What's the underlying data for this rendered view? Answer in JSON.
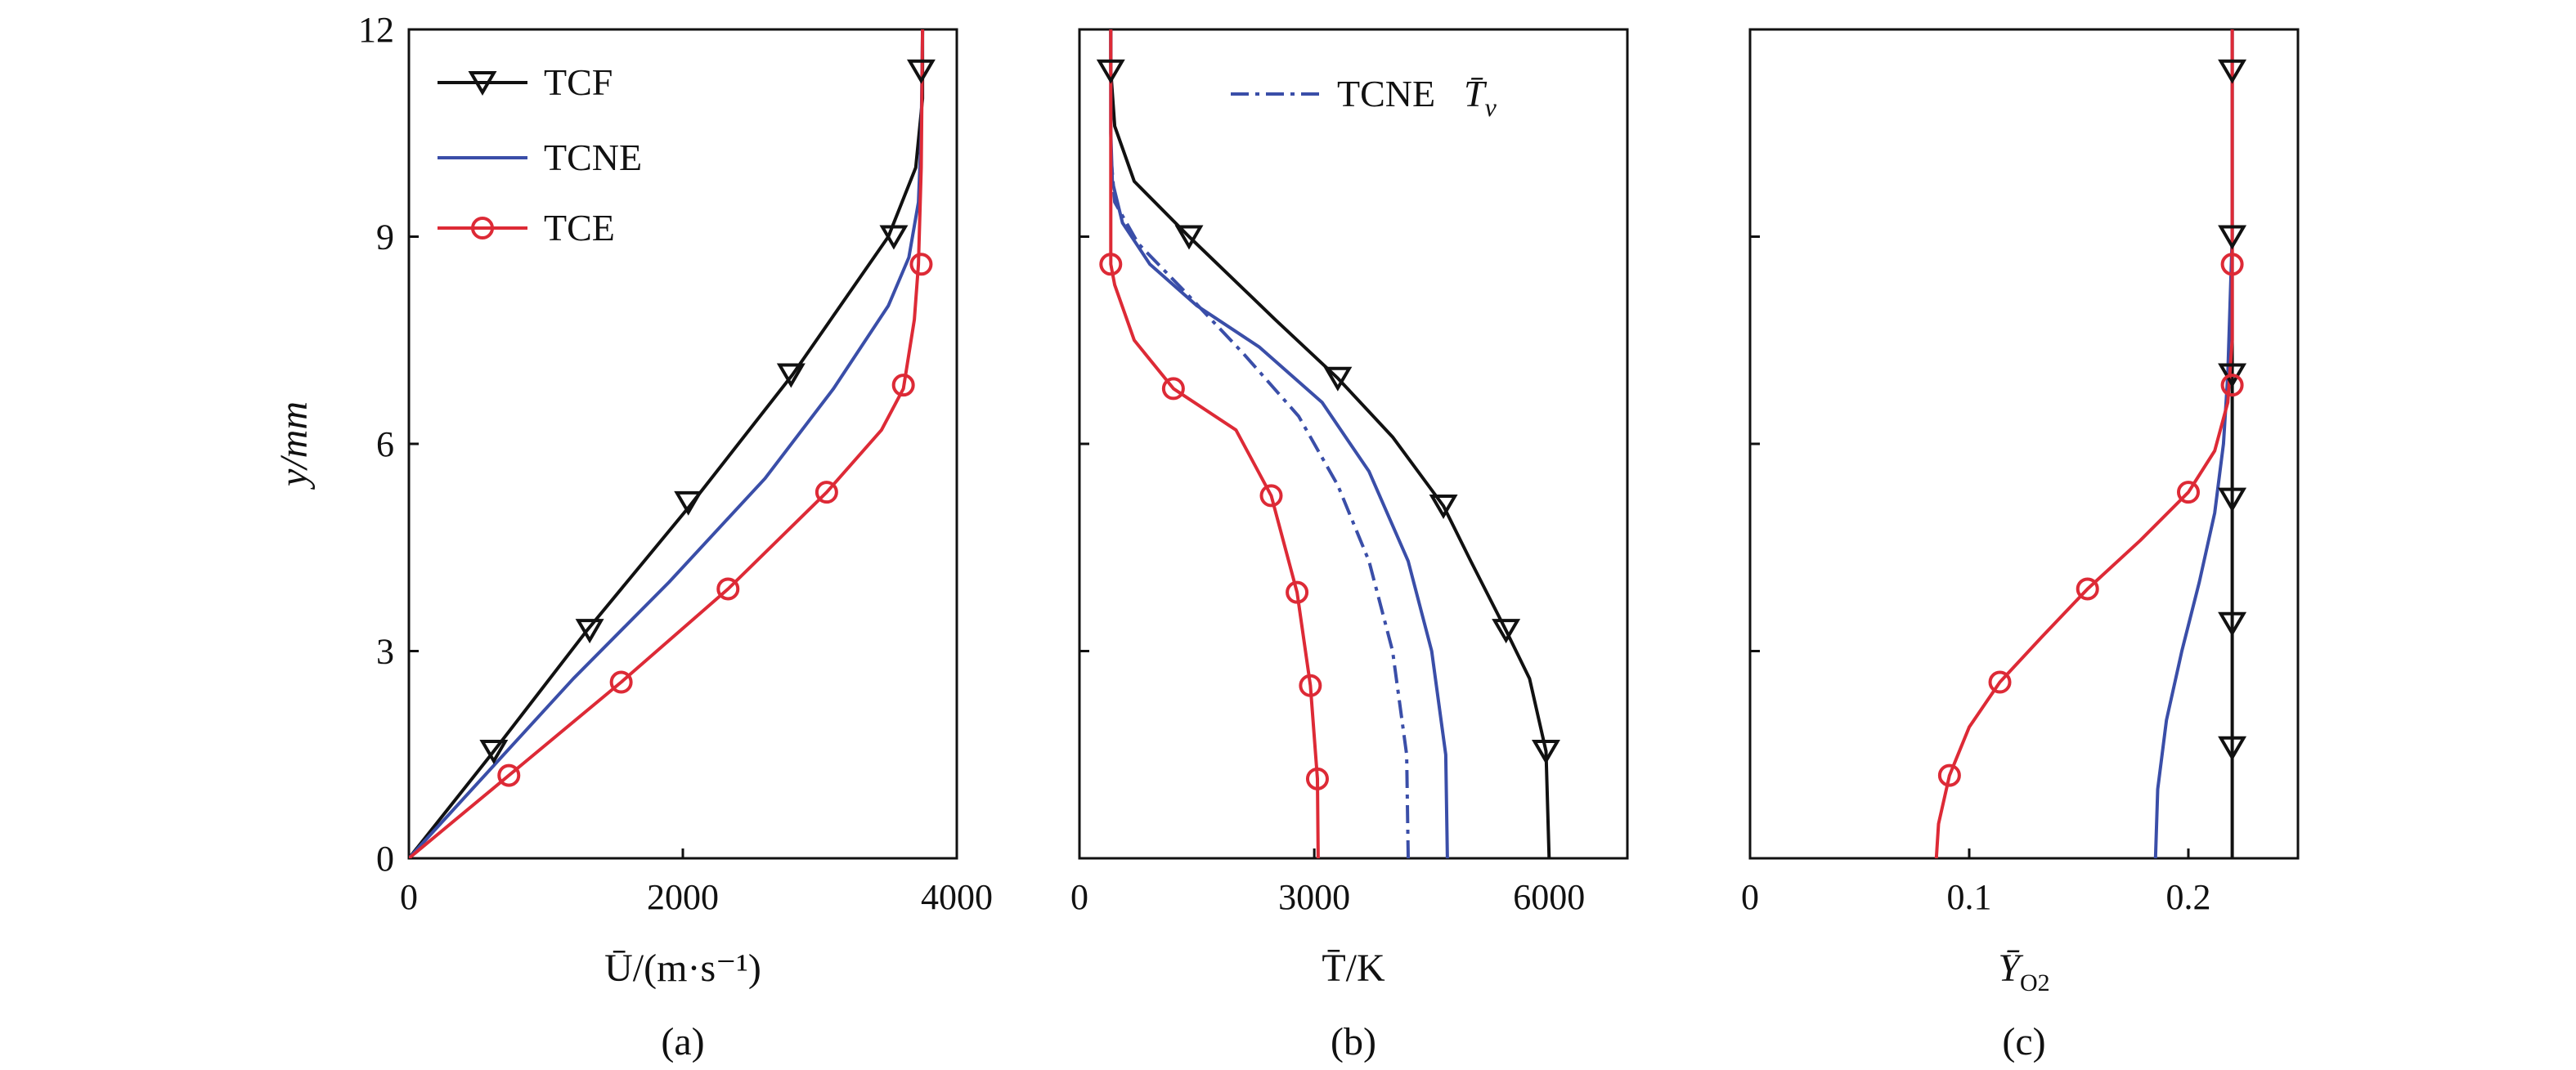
{
  "colors": {
    "TCF": "#111111",
    "TCNE": "#3a4ea8",
    "TCE": "#dd2a36",
    "TCNE_Tv": "#3a4ea8"
  },
  "chart_data": [
    {
      "type": "line",
      "panel_label": "(a)",
      "xlabel": "Ū/(m·s⁻¹)",
      "ylabel": "y/mm",
      "xlim": [
        0,
        4000
      ],
      "ylim": [
        0,
        12
      ],
      "xticks": [
        0,
        2000,
        4000
      ],
      "xtick_labels": [
        "0",
        "2000",
        "4000"
      ],
      "yticks": [
        0,
        3,
        6,
        9,
        12
      ],
      "ytick_labels": [
        "0",
        "3",
        "6",
        "9",
        "12"
      ],
      "grid": false,
      "legend_position": "top-left",
      "series": [
        {
          "name": "TCF",
          "marker": "triangle-down",
          "line": "solid",
          "points": [
            [
              0,
              0
            ],
            [
              600,
              1.5
            ],
            [
              1300,
              3.3
            ],
            [
              2050,
              5.1
            ],
            [
              2800,
              7.0
            ],
            [
              3500,
              9.0
            ],
            [
              3700,
              10.0
            ],
            [
              3750,
              11.0
            ],
            [
              3750,
              12.0
            ]
          ],
          "markers": [
            [
              620,
              1.55
            ],
            [
              1320,
              3.3
            ],
            [
              2040,
              5.15
            ],
            [
              2790,
              7.0
            ],
            [
              3540,
              9.0
            ],
            [
              3740,
              11.4
            ]
          ]
        },
        {
          "name": "TCNE",
          "line": "solid",
          "points": [
            [
              0,
              0
            ],
            [
              600,
              1.3
            ],
            [
              1200,
              2.6
            ],
            [
              1900,
              4.0
            ],
            [
              2600,
              5.5
            ],
            [
              3100,
              6.8
            ],
            [
              3500,
              8.0
            ],
            [
              3650,
              8.7
            ],
            [
              3720,
              9.5
            ],
            [
              3740,
              10.5
            ],
            [
              3750,
              12.0
            ]
          ]
        },
        {
          "name": "TCE",
          "marker": "circle",
          "line": "solid",
          "points": [
            [
              0,
              0
            ],
            [
              730,
              1.2
            ],
            [
              1550,
              2.55
            ],
            [
              2330,
              3.9
            ],
            [
              3050,
              5.3
            ],
            [
              3450,
              6.2
            ],
            [
              3610,
              6.8
            ],
            [
              3690,
              7.8
            ],
            [
              3720,
              8.6
            ],
            [
              3740,
              10.0
            ],
            [
              3750,
              12.0
            ]
          ],
          "markers": [
            [
              730,
              1.2
            ],
            [
              1550,
              2.55
            ],
            [
              2330,
              3.9
            ],
            [
              3050,
              5.3
            ],
            [
              3610,
              6.85
            ],
            [
              3740,
              8.6
            ]
          ]
        }
      ]
    },
    {
      "type": "line",
      "panel_label": "(b)",
      "xlabel": "T̄/K",
      "xlim": [
        0,
        7000
      ],
      "ylim": [
        0,
        12
      ],
      "xticks": [
        0,
        3000,
        6000
      ],
      "xtick_labels": [
        "0",
        "3000",
        "6000"
      ],
      "grid": false,
      "legend_position": "top-right",
      "series": [
        {
          "name": "TCF",
          "marker": "triangle-down",
          "line": "solid",
          "points": [
            [
              6000,
              0
            ],
            [
              5960,
              1.55
            ],
            [
              5750,
              2.6
            ],
            [
              5450,
              3.3
            ],
            [
              5000,
              4.3
            ],
            [
              4650,
              5.1
            ],
            [
              4000,
              6.1
            ],
            [
              3300,
              6.95
            ],
            [
              2500,
              7.8
            ],
            [
              1400,
              9.0
            ],
            [
              700,
              9.8
            ],
            [
              450,
              10.6
            ],
            [
              400,
              11.4
            ],
            [
              400,
              12.0
            ]
          ],
          "markers": [
            [
              5960,
              1.55
            ],
            [
              5450,
              3.3
            ],
            [
              4650,
              5.1
            ],
            [
              3300,
              6.95
            ],
            [
              1400,
              9.0
            ],
            [
              400,
              11.4
            ]
          ]
        },
        {
          "name": "TCNE",
          "line": "solid",
          "points": [
            [
              4700,
              0
            ],
            [
              4680,
              1.5
            ],
            [
              4500,
              3.0
            ],
            [
              4200,
              4.3
            ],
            [
              3700,
              5.6
            ],
            [
              3100,
              6.6
            ],
            [
              2300,
              7.4
            ],
            [
              1500,
              8.0
            ],
            [
              900,
              8.6
            ],
            [
              550,
              9.2
            ],
            [
              420,
              9.8
            ],
            [
              400,
              10.5
            ],
            [
              400,
              12.0
            ]
          ]
        },
        {
          "name": "TCNE T̄v",
          "line": "dashdot",
          "legend_label": "TCNE",
          "points": [
            [
              4200,
              0
            ],
            [
              4180,
              1.5
            ],
            [
              4000,
              3.0
            ],
            [
              3700,
              4.3
            ],
            [
              3300,
              5.4
            ],
            [
              2800,
              6.4
            ],
            [
              2100,
              7.3
            ],
            [
              1350,
              8.2
            ],
            [
              750,
              8.9
            ],
            [
              450,
              9.5
            ],
            [
              400,
              10.2
            ]
          ]
        },
        {
          "name": "TCE",
          "marker": "circle",
          "line": "solid",
          "points": [
            [
              3050,
              0
            ],
            [
              3040,
              1.15
            ],
            [
              2950,
              2.5
            ],
            [
              2780,
              3.85
            ],
            [
              2450,
              5.25
            ],
            [
              2000,
              6.2
            ],
            [
              1200,
              6.8
            ],
            [
              700,
              7.5
            ],
            [
              450,
              8.3
            ],
            [
              400,
              8.6
            ],
            [
              400,
              10.0
            ],
            [
              400,
              12.0
            ]
          ],
          "markers": [
            [
              3040,
              1.15
            ],
            [
              2950,
              2.5
            ],
            [
              2780,
              3.85
            ],
            [
              2450,
              5.25
            ],
            [
              1200,
              6.8
            ],
            [
              400,
              8.6
            ]
          ]
        }
      ]
    },
    {
      "type": "line",
      "panel_label": "(c)",
      "xlabel": "Ȳ",
      "xlabel_sub": "O2",
      "xlim": [
        0,
        0.25
      ],
      "ylim": [
        0,
        12
      ],
      "xticks": [
        0,
        0.1,
        0.2
      ],
      "xtick_labels": [
        "0",
        "0.1",
        "0.2"
      ],
      "grid": false,
      "series": [
        {
          "name": "TCF",
          "marker": "triangle-down",
          "line": "solid",
          "points": [
            [
              0.22,
              0
            ],
            [
              0.22,
              12.0
            ]
          ],
          "markers": [
            [
              0.22,
              1.6
            ],
            [
              0.22,
              3.4
            ],
            [
              0.22,
              5.2
            ],
            [
              0.22,
              7.0
            ],
            [
              0.22,
              9.0
            ],
            [
              0.22,
              11.4
            ]
          ]
        },
        {
          "name": "TCNE",
          "line": "solid",
          "points": [
            [
              0.185,
              0
            ],
            [
              0.186,
              1.0
            ],
            [
              0.19,
              2.0
            ],
            [
              0.197,
              3.0
            ],
            [
              0.205,
              4.0
            ],
            [
              0.212,
              5.0
            ],
            [
              0.216,
              6.0
            ],
            [
              0.218,
              7.0
            ],
            [
              0.219,
              8.0
            ],
            [
              0.22,
              9.0
            ],
            [
              0.22,
              12.0
            ]
          ]
        },
        {
          "name": "TCE",
          "marker": "circle",
          "line": "solid",
          "points": [
            [
              0.085,
              0
            ],
            [
              0.086,
              0.5
            ],
            [
              0.091,
              1.2
            ],
            [
              0.1,
              1.9
            ],
            [
              0.114,
              2.55
            ],
            [
              0.133,
              3.2
            ],
            [
              0.154,
              3.9
            ],
            [
              0.178,
              4.6
            ],
            [
              0.2,
              5.3
            ],
            [
              0.212,
              5.9
            ],
            [
              0.218,
              6.6
            ],
            [
              0.22,
              7.5
            ],
            [
              0.22,
              8.6
            ],
            [
              0.22,
              12.0
            ]
          ],
          "markers": [
            [
              0.091,
              1.2
            ],
            [
              0.114,
              2.55
            ],
            [
              0.154,
              3.9
            ],
            [
              0.2,
              5.3
            ],
            [
              0.22,
              6.85
            ],
            [
              0.22,
              8.6
            ]
          ]
        }
      ]
    }
  ]
}
